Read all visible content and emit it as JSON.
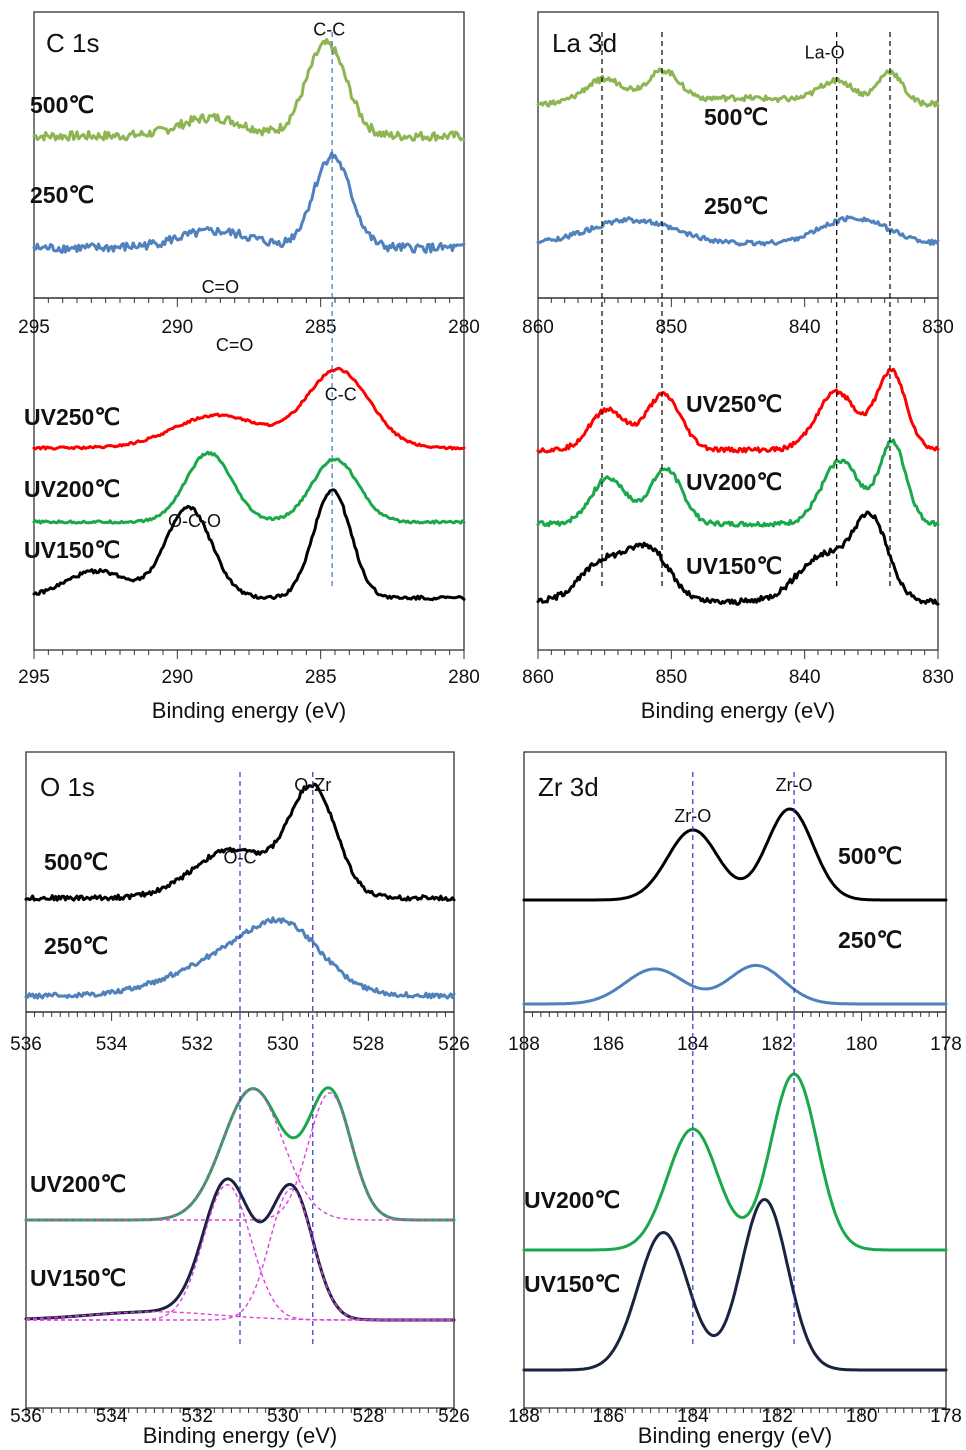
{
  "chart_data": [
    {
      "type": "line",
      "title": "C 1s",
      "xlabel": "Binding energy (eV)",
      "xlim": [
        295,
        280
      ],
      "x_ticks": [
        "295",
        "290",
        "285",
        "280"
      ],
      "x_reversed": true,
      "guide_lines": [
        {
          "x": 284.6,
          "color": "#4472c4"
        }
      ],
      "panels": [
        {
          "series": [
            {
              "name": "500℃",
              "color": "#8db552",
              "peaks": [
                [
                  288.8,
                  0.2,
                  1.1
                ],
                [
                  284.8,
                  1.0,
                  0.7
                ]
              ],
              "noise": 0.05
            },
            {
              "name": "250℃",
              "color": "#4f81bd",
              "peaks": [
                [
                  288.7,
                  0.18,
                  1.3
                ],
                [
                  284.6,
                  1.0,
                  0.65
                ]
              ],
              "noise": 0.05
            }
          ],
          "annotations": [
            {
              "text": "C=O",
              "x": 288.5,
              "y": 0.92
            },
            {
              "text": "C-C",
              "x": 284.7,
              "y": 0.02
            }
          ]
        },
        {
          "series": [
            {
              "name": "UV250℃",
              "color": "#ff0000",
              "peaks": [
                [
                  288.6,
                  0.55,
                  1.5
                ],
                [
                  284.4,
                  1.3,
                  1.1
                ]
              ],
              "noise": 0.02
            },
            {
              "name": "UV200℃",
              "color": "#1aa84a",
              "peaks": [
                [
                  288.9,
                  1.15,
                  0.8
                ],
                [
                  284.5,
                  1.05,
                  0.8
                ]
              ],
              "noise": 0.02
            },
            {
              "name": "UV150℃",
              "color": "#000000",
              "peaks": [
                [
                  292.8,
                  0.45,
                  1.1
                ],
                [
                  289.6,
                  1.5,
                  0.8
                ],
                [
                  284.6,
                  1.8,
                  0.65
                ]
              ],
              "noise": 0.03
            }
          ],
          "annotations": [
            {
              "text": "C=O",
              "x": 288.0,
              "y": 0.1
            },
            {
              "text": "C-C",
              "x": 284.3,
              "y": 0.24
            },
            {
              "text": "O-C-O",
              "x": 289.4,
              "y": 0.6
            }
          ]
        }
      ]
    },
    {
      "type": "line",
      "title": "La 3d",
      "xlabel": "Binding energy (eV)",
      "xlim": [
        860,
        830
      ],
      "x_ticks": [
        "860",
        "850",
        "840",
        "830"
      ],
      "x_reversed": true,
      "guide_lines": [
        {
          "x": 855.2,
          "color": "#000000"
        },
        {
          "x": 850.7,
          "color": "#000000"
        },
        {
          "x": 837.6,
          "color": "#000000"
        },
        {
          "x": 833.6,
          "color": "#000000"
        }
      ],
      "panels": [
        {
          "series": [
            {
              "name": "500℃",
              "color": "#8db552",
              "peaks": [
                [
                  855.0,
                  0.6,
                  1.5
                ],
                [
                  850.6,
                  0.75,
                  1.2
                ],
                [
                  837.6,
                  0.55,
                  1.3
                ],
                [
                  833.6,
                  0.8,
                  0.9
                ],
                [
                  845.0,
                  0.15,
                  5.0
                ]
              ],
              "noise": 0.07
            },
            {
              "name": "250℃",
              "color": "#4f81bd",
              "peaks": [
                [
                  853.0,
                  0.6,
                  3.2
                ],
                [
                  836.3,
                  0.65,
                  2.5
                ]
              ],
              "noise": 0.06
            }
          ],
          "annotations": [
            {
              "text": "La-O",
              "x": 838.5,
              "y": 0.1
            }
          ]
        },
        {
          "series": [
            {
              "name": "UV250℃",
              "color": "#ff0000",
              "peaks": [
                [
                  854.8,
                  0.7,
                  1.3
                ],
                [
                  850.6,
                  0.95,
                  1.3
                ],
                [
                  837.6,
                  1.0,
                  1.5
                ],
                [
                  833.5,
                  1.35,
                  1.1
                ]
              ],
              "noise": 0.04
            },
            {
              "name": "UV200℃",
              "color": "#1aa84a",
              "peaks": [
                [
                  854.7,
                  0.8,
                  1.3
                ],
                [
                  850.4,
                  0.95,
                  1.2
                ],
                [
                  837.3,
                  1.1,
                  1.4
                ],
                [
                  833.4,
                  1.4,
                  1.0
                ]
              ],
              "noise": 0.04
            },
            {
              "name": "UV150℃",
              "color": "#000000",
              "peaks": [
                [
                  855.0,
                  0.7,
                  1.8
                ],
                [
                  851.6,
                  0.85,
                  1.5
                ],
                [
                  838.5,
                  0.8,
                  2.0
                ],
                [
                  835.0,
                  1.35,
                  1.3
                ]
              ],
              "noise": 0.05
            }
          ],
          "annotations": []
        }
      ]
    },
    {
      "type": "line",
      "title": "O 1s",
      "xlabel": "Binding energy (eV)",
      "xlim": [
        536,
        526
      ],
      "x_ticks": [
        "536",
        "534",
        "532",
        "530",
        "528",
        "526"
      ],
      "x_reversed": true,
      "guide_lines": [
        {
          "x": 531.0,
          "color": "#3333cc"
        },
        {
          "x": 529.3,
          "color": "#3333cc"
        }
      ],
      "panels": [
        {
          "series": [
            {
              "name": "500℃",
              "color": "#000000",
              "peaks": [
                [
                  531.2,
                  0.6,
                  0.9
                ],
                [
                  529.3,
                  1.35,
                  0.55
                ]
              ],
              "noise": 0.03
            },
            {
              "name": "250℃",
              "color": "#4f81bd",
              "peaks": [
                [
                  530.9,
                  0.55,
                  1.4
                ],
                [
                  529.9,
                  0.5,
                  0.8
                ]
              ],
              "noise": 0.03
            }
          ],
          "annotations": [
            {
              "text": "O-C",
              "x": 531.0,
              "y": 0.36
            },
            {
              "text": "O-Zr",
              "x": 529.3,
              "y": 0.08
            }
          ]
        },
        {
          "series": [
            {
              "name": "UV200℃",
              "color": "#1aa84a",
              "peaks": [
                [
                  530.7,
                  1.6,
                  0.7
                ],
                [
                  528.9,
                  1.55,
                  0.5
                ]
              ],
              "noise": 0.0,
              "components": [
                [
                  530.7,
                  1.6,
                  0.7
                ],
                [
                  528.9,
                  1.55,
                  0.5
                ]
              ]
            },
            {
              "name": "UV150℃",
              "color": "#1a2340",
              "peaks": [
                [
                  531.3,
                  1.65,
                  0.55
                ],
                [
                  529.8,
                  1.6,
                  0.5
                ],
                [
                  533.0,
                  0.1,
                  1.5
                ]
              ],
              "noise": 0.0,
              "components": [
                [
                  531.3,
                  1.65,
                  0.55
                ],
                [
                  529.8,
                  1.6,
                  0.5
                ],
                [
                  533.0,
                  0.1,
                  1.5
                ]
              ]
            }
          ],
          "annotations": []
        }
      ]
    },
    {
      "type": "line",
      "title": "Zr 3d",
      "xlabel": "Binding energy (eV)",
      "xlim": [
        188,
        178
      ],
      "x_ticks": [
        "188",
        "186",
        "184",
        "182",
        "180",
        "178"
      ],
      "x_reversed": true,
      "guide_lines": [
        {
          "x": 184.0,
          "color": "#3333cc"
        },
        {
          "x": 181.6,
          "color": "#3333cc"
        }
      ],
      "panels": [
        {
          "series": [
            {
              "name": "500℃",
              "color": "#000000",
              "peaks": [
                [
                  184.0,
                  1.0,
                  0.6
                ],
                [
                  181.7,
                  1.3,
                  0.55
                ]
              ],
              "noise": 0.0
            },
            {
              "name": "250℃",
              "color": "#4f81bd",
              "peaks": [
                [
                  184.9,
                  0.5,
                  0.7
                ],
                [
                  182.5,
                  0.55,
                  0.65
                ]
              ],
              "noise": 0.0
            }
          ],
          "annotations": [
            {
              "text": "Zr-O",
              "x": 184.0,
              "y": 0.2
            },
            {
              "text": "Zr-O",
              "x": 181.6,
              "y": 0.08
            }
          ]
        },
        {
          "series": [
            {
              "name": "UV200℃",
              "color": "#1aa84a",
              "peaks": [
                [
                  184.0,
                  1.1,
                  0.6
                ],
                [
                  181.6,
                  1.6,
                  0.55
                ]
              ],
              "noise": 0.0
            },
            {
              "name": "UV150℃",
              "color": "#1a2340",
              "peaks": [
                [
                  184.7,
                  1.25,
                  0.6
                ],
                [
                  182.3,
                  1.55,
                  0.55
                ]
              ],
              "noise": 0.0
            }
          ],
          "annotations": []
        }
      ]
    }
  ]
}
